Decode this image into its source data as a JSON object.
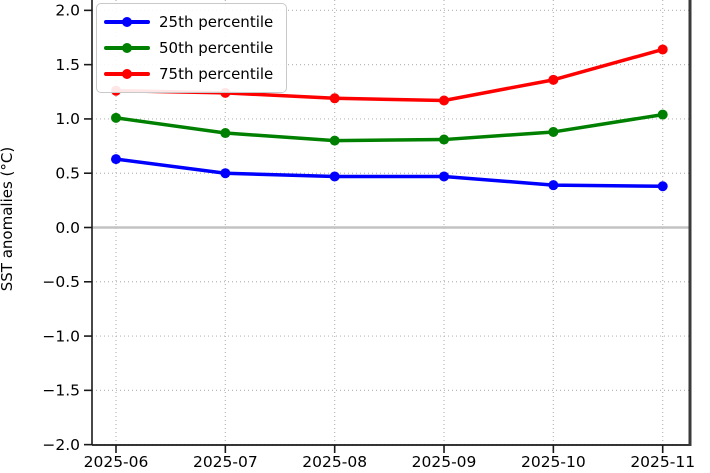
{
  "chart_data": {
    "type": "line",
    "title": "",
    "xlabel": "",
    "ylabel": "SST anomalies (°C)",
    "x": [
      "2025-06",
      "2025-07",
      "2025-08",
      "2025-09",
      "2025-10",
      "2025-11"
    ],
    "series": [
      {
        "name": "25th percentile",
        "color": "#0000ff",
        "values": [
          0.63,
          0.5,
          0.47,
          0.47,
          0.39,
          0.38
        ]
      },
      {
        "name": "50th percentile",
        "color": "#008000",
        "values": [
          1.01,
          0.87,
          0.8,
          0.81,
          0.88,
          1.04
        ]
      },
      {
        "name": "75th percentile",
        "color": "#ff0000",
        "values": [
          1.26,
          1.24,
          1.19,
          1.17,
          1.36,
          1.64
        ]
      }
    ],
    "ylim": [
      -2.0,
      2.0
    ],
    "yticks": [
      2.0,
      1.5,
      1.0,
      0.5,
      0.0,
      -0.5,
      -1.0,
      -1.5,
      -2.0
    ],
    "ytick_labels": [
      "2.0",
      "1.5",
      "1.0",
      "0.5",
      "0.0",
      "−0.5",
      "−1.0",
      "−1.5",
      "−2.0"
    ],
    "grid": true,
    "grid_style": "dotted",
    "legend_position": "upper left",
    "zero_line": true,
    "colors": {
      "grid": "#b8b8b8",
      "zero_line": "#c3c3c3",
      "spine": "#1a1a1a",
      "right_spine": "#3a3a3a",
      "tick_text": "#000000"
    }
  }
}
